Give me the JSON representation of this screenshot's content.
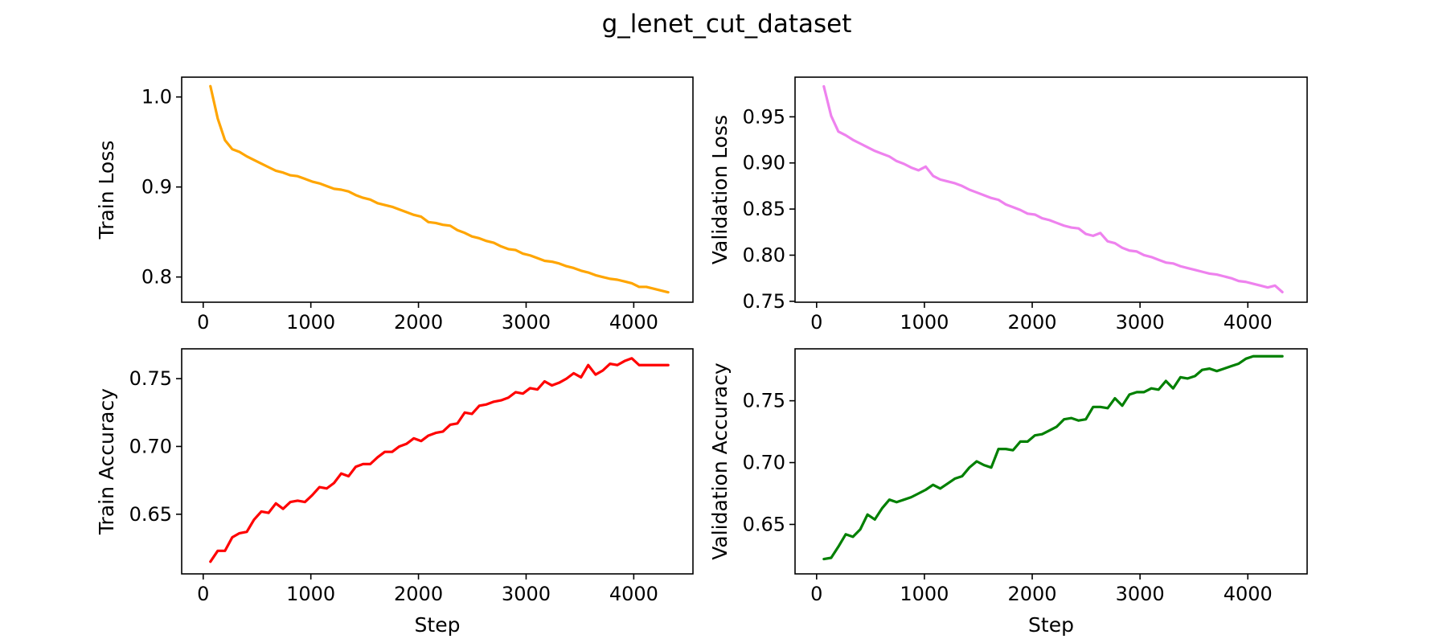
{
  "figure": {
    "title": "g_lenet_cut_dataset"
  },
  "chart_data": [
    {
      "type": "line",
      "xlabel": "",
      "ylabel": "Train Loss",
      "xlim": [
        -200,
        4550
      ],
      "ylim": [
        0.772,
        1.022
      ],
      "xticks": [
        0,
        1000,
        2000,
        3000,
        4000
      ],
      "xtick_labels": [
        "0",
        "1000",
        "2000",
        "3000",
        "4000"
      ],
      "yticks": [
        0.8,
        0.9,
        1.0
      ],
      "ytick_labels": [
        "0.8",
        "0.9",
        "1.0"
      ],
      "grid": false,
      "color": "#ffa500",
      "series": [
        {
          "x": [
            67,
            135,
            202,
            270,
            337,
            405,
            472,
            540,
            607,
            675,
            742,
            810,
            877,
            945,
            1012,
            1080,
            1147,
            1215,
            1282,
            1350,
            1417,
            1485,
            1552,
            1620,
            1687,
            1755,
            1822,
            1890,
            1957,
            2025,
            2092,
            2160,
            2227,
            2295,
            2362,
            2430,
            2497,
            2565,
            2632,
            2700,
            2767,
            2835,
            2902,
            2970,
            3037,
            3105,
            3172,
            3240,
            3307,
            3375,
            3442,
            3510,
            3577,
            3645,
            3712,
            3780,
            3847,
            3915,
            3982,
            4050,
            4117,
            4185,
            4252,
            4320
          ],
          "y": [
            1.012,
            0.976,
            0.952,
            0.942,
            0.939,
            0.934,
            0.93,
            0.926,
            0.922,
            0.918,
            0.916,
            0.913,
            0.912,
            0.909,
            0.906,
            0.904,
            0.901,
            0.898,
            0.897,
            0.895,
            0.891,
            0.888,
            0.886,
            0.882,
            0.88,
            0.878,
            0.875,
            0.872,
            0.869,
            0.867,
            0.861,
            0.86,
            0.858,
            0.857,
            0.852,
            0.849,
            0.845,
            0.843,
            0.84,
            0.838,
            0.834,
            0.831,
            0.83,
            0.826,
            0.824,
            0.821,
            0.818,
            0.817,
            0.815,
            0.812,
            0.81,
            0.807,
            0.805,
            0.802,
            0.8,
            0.798,
            0.797,
            0.795,
            0.793,
            0.789,
            0.789,
            0.787,
            0.785,
            0.783
          ]
        }
      ]
    },
    {
      "type": "line",
      "xlabel": "",
      "ylabel": "Validation Loss",
      "xlim": [
        -200,
        4550
      ],
      "ylim": [
        0.749,
        0.993
      ],
      "xticks": [
        0,
        1000,
        2000,
        3000,
        4000
      ],
      "xtick_labels": [
        "0",
        "1000",
        "2000",
        "3000",
        "4000"
      ],
      "yticks": [
        0.75,
        0.8,
        0.85,
        0.9,
        0.95
      ],
      "ytick_labels": [
        "0.75",
        "0.80",
        "0.85",
        "0.90",
        "0.95"
      ],
      "grid": false,
      "color": "#ee82ee",
      "series": [
        {
          "x": [
            67,
            135,
            202,
            270,
            337,
            405,
            472,
            540,
            607,
            675,
            742,
            810,
            877,
            945,
            1012,
            1080,
            1147,
            1215,
            1282,
            1350,
            1417,
            1485,
            1552,
            1620,
            1687,
            1755,
            1822,
            1890,
            1957,
            2025,
            2092,
            2160,
            2227,
            2295,
            2362,
            2430,
            2497,
            2565,
            2632,
            2700,
            2767,
            2835,
            2902,
            2970,
            3037,
            3105,
            3172,
            3240,
            3307,
            3375,
            3442,
            3510,
            3577,
            3645,
            3712,
            3780,
            3847,
            3915,
            3982,
            4050,
            4117,
            4185,
            4252,
            4320
          ],
          "y": [
            0.983,
            0.951,
            0.934,
            0.93,
            0.925,
            0.921,
            0.917,
            0.913,
            0.91,
            0.907,
            0.902,
            0.899,
            0.895,
            0.892,
            0.896,
            0.886,
            0.882,
            0.88,
            0.878,
            0.875,
            0.871,
            0.868,
            0.865,
            0.862,
            0.86,
            0.855,
            0.852,
            0.849,
            0.845,
            0.844,
            0.84,
            0.838,
            0.835,
            0.832,
            0.83,
            0.829,
            0.823,
            0.821,
            0.824,
            0.815,
            0.813,
            0.808,
            0.805,
            0.804,
            0.8,
            0.798,
            0.795,
            0.792,
            0.791,
            0.788,
            0.786,
            0.784,
            0.782,
            0.78,
            0.779,
            0.777,
            0.775,
            0.772,
            0.771,
            0.769,
            0.767,
            0.765,
            0.767,
            0.76
          ]
        }
      ]
    },
    {
      "type": "line",
      "xlabel": "Step",
      "ylabel": "Train Accuracy",
      "xlim": [
        -200,
        4550
      ],
      "ylim": [
        0.606,
        0.772
      ],
      "xticks": [
        0,
        1000,
        2000,
        3000,
        4000
      ],
      "xtick_labels": [
        "0",
        "1000",
        "2000",
        "3000",
        "4000"
      ],
      "yticks": [
        0.65,
        0.7,
        0.75
      ],
      "ytick_labels": [
        "0.65",
        "0.70",
        "0.75"
      ],
      "grid": false,
      "color": "#ff0000",
      "series": [
        {
          "x": [
            67,
            135,
            202,
            270,
            337,
            405,
            472,
            540,
            607,
            675,
            742,
            810,
            877,
            945,
            1012,
            1080,
            1147,
            1215,
            1282,
            1350,
            1417,
            1485,
            1552,
            1620,
            1687,
            1755,
            1822,
            1890,
            1957,
            2025,
            2092,
            2160,
            2227,
            2295,
            2362,
            2430,
            2497,
            2565,
            2632,
            2700,
            2767,
            2835,
            2902,
            2970,
            3037,
            3105,
            3172,
            3240,
            3307,
            3375,
            3442,
            3510,
            3577,
            3645,
            3712,
            3780,
            3847,
            3915,
            3982,
            4050,
            4117,
            4185,
            4252,
            4320
          ],
          "y": [
            0.615,
            0.623,
            0.623,
            0.633,
            0.636,
            0.637,
            0.646,
            0.652,
            0.651,
            0.658,
            0.654,
            0.659,
            0.66,
            0.659,
            0.664,
            0.67,
            0.669,
            0.673,
            0.68,
            0.678,
            0.685,
            0.687,
            0.687,
            0.692,
            0.696,
            0.696,
            0.7,
            0.702,
            0.706,
            0.704,
            0.708,
            0.71,
            0.711,
            0.716,
            0.717,
            0.725,
            0.724,
            0.73,
            0.731,
            0.733,
            0.734,
            0.736,
            0.74,
            0.739,
            0.743,
            0.742,
            0.748,
            0.745,
            0.747,
            0.75,
            0.754,
            0.751,
            0.76,
            0.753,
            0.756,
            0.761,
            0.76,
            0.763,
            0.765,
            0.76,
            0.76,
            0.76,
            0.76,
            0.76
          ]
        }
      ]
    },
    {
      "type": "line",
      "xlabel": "Step",
      "ylabel": "Validation Accuracy",
      "xlim": [
        -200,
        4550
      ],
      "ylim": [
        0.61,
        0.792
      ],
      "xticks": [
        0,
        1000,
        2000,
        3000,
        4000
      ],
      "xtick_labels": [
        "0",
        "1000",
        "2000",
        "3000",
        "4000"
      ],
      "yticks": [
        0.65,
        0.7,
        0.75
      ],
      "ytick_labels": [
        "0.65",
        "0.70",
        "0.75"
      ],
      "grid": false,
      "color": "#008000",
      "series": [
        {
          "x": [
            67,
            135,
            202,
            270,
            337,
            405,
            472,
            540,
            607,
            675,
            742,
            810,
            877,
            945,
            1012,
            1080,
            1147,
            1215,
            1282,
            1350,
            1417,
            1485,
            1552,
            1620,
            1687,
            1755,
            1822,
            1890,
            1957,
            2025,
            2092,
            2160,
            2227,
            2295,
            2362,
            2430,
            2497,
            2565,
            2632,
            2700,
            2767,
            2835,
            2902,
            2970,
            3037,
            3105,
            3172,
            3240,
            3307,
            3375,
            3442,
            3510,
            3577,
            3645,
            3712,
            3780,
            3847,
            3915,
            3982,
            4050,
            4117,
            4185,
            4252,
            4320
          ],
          "y": [
            0.622,
            0.623,
            0.632,
            0.642,
            0.64,
            0.646,
            0.658,
            0.654,
            0.663,
            0.67,
            0.668,
            0.67,
            0.672,
            0.675,
            0.678,
            0.682,
            0.679,
            0.683,
            0.687,
            0.689,
            0.696,
            0.701,
            0.698,
            0.696,
            0.711,
            0.711,
            0.71,
            0.717,
            0.717,
            0.722,
            0.723,
            0.726,
            0.729,
            0.735,
            0.736,
            0.734,
            0.735,
            0.745,
            0.745,
            0.744,
            0.752,
            0.746,
            0.755,
            0.757,
            0.757,
            0.76,
            0.759,
            0.766,
            0.76,
            0.769,
            0.768,
            0.77,
            0.775,
            0.776,
            0.774,
            0.776,
            0.778,
            0.78,
            0.784,
            0.786,
            0.786,
            0.786,
            0.786,
            0.786
          ]
        }
      ]
    }
  ]
}
